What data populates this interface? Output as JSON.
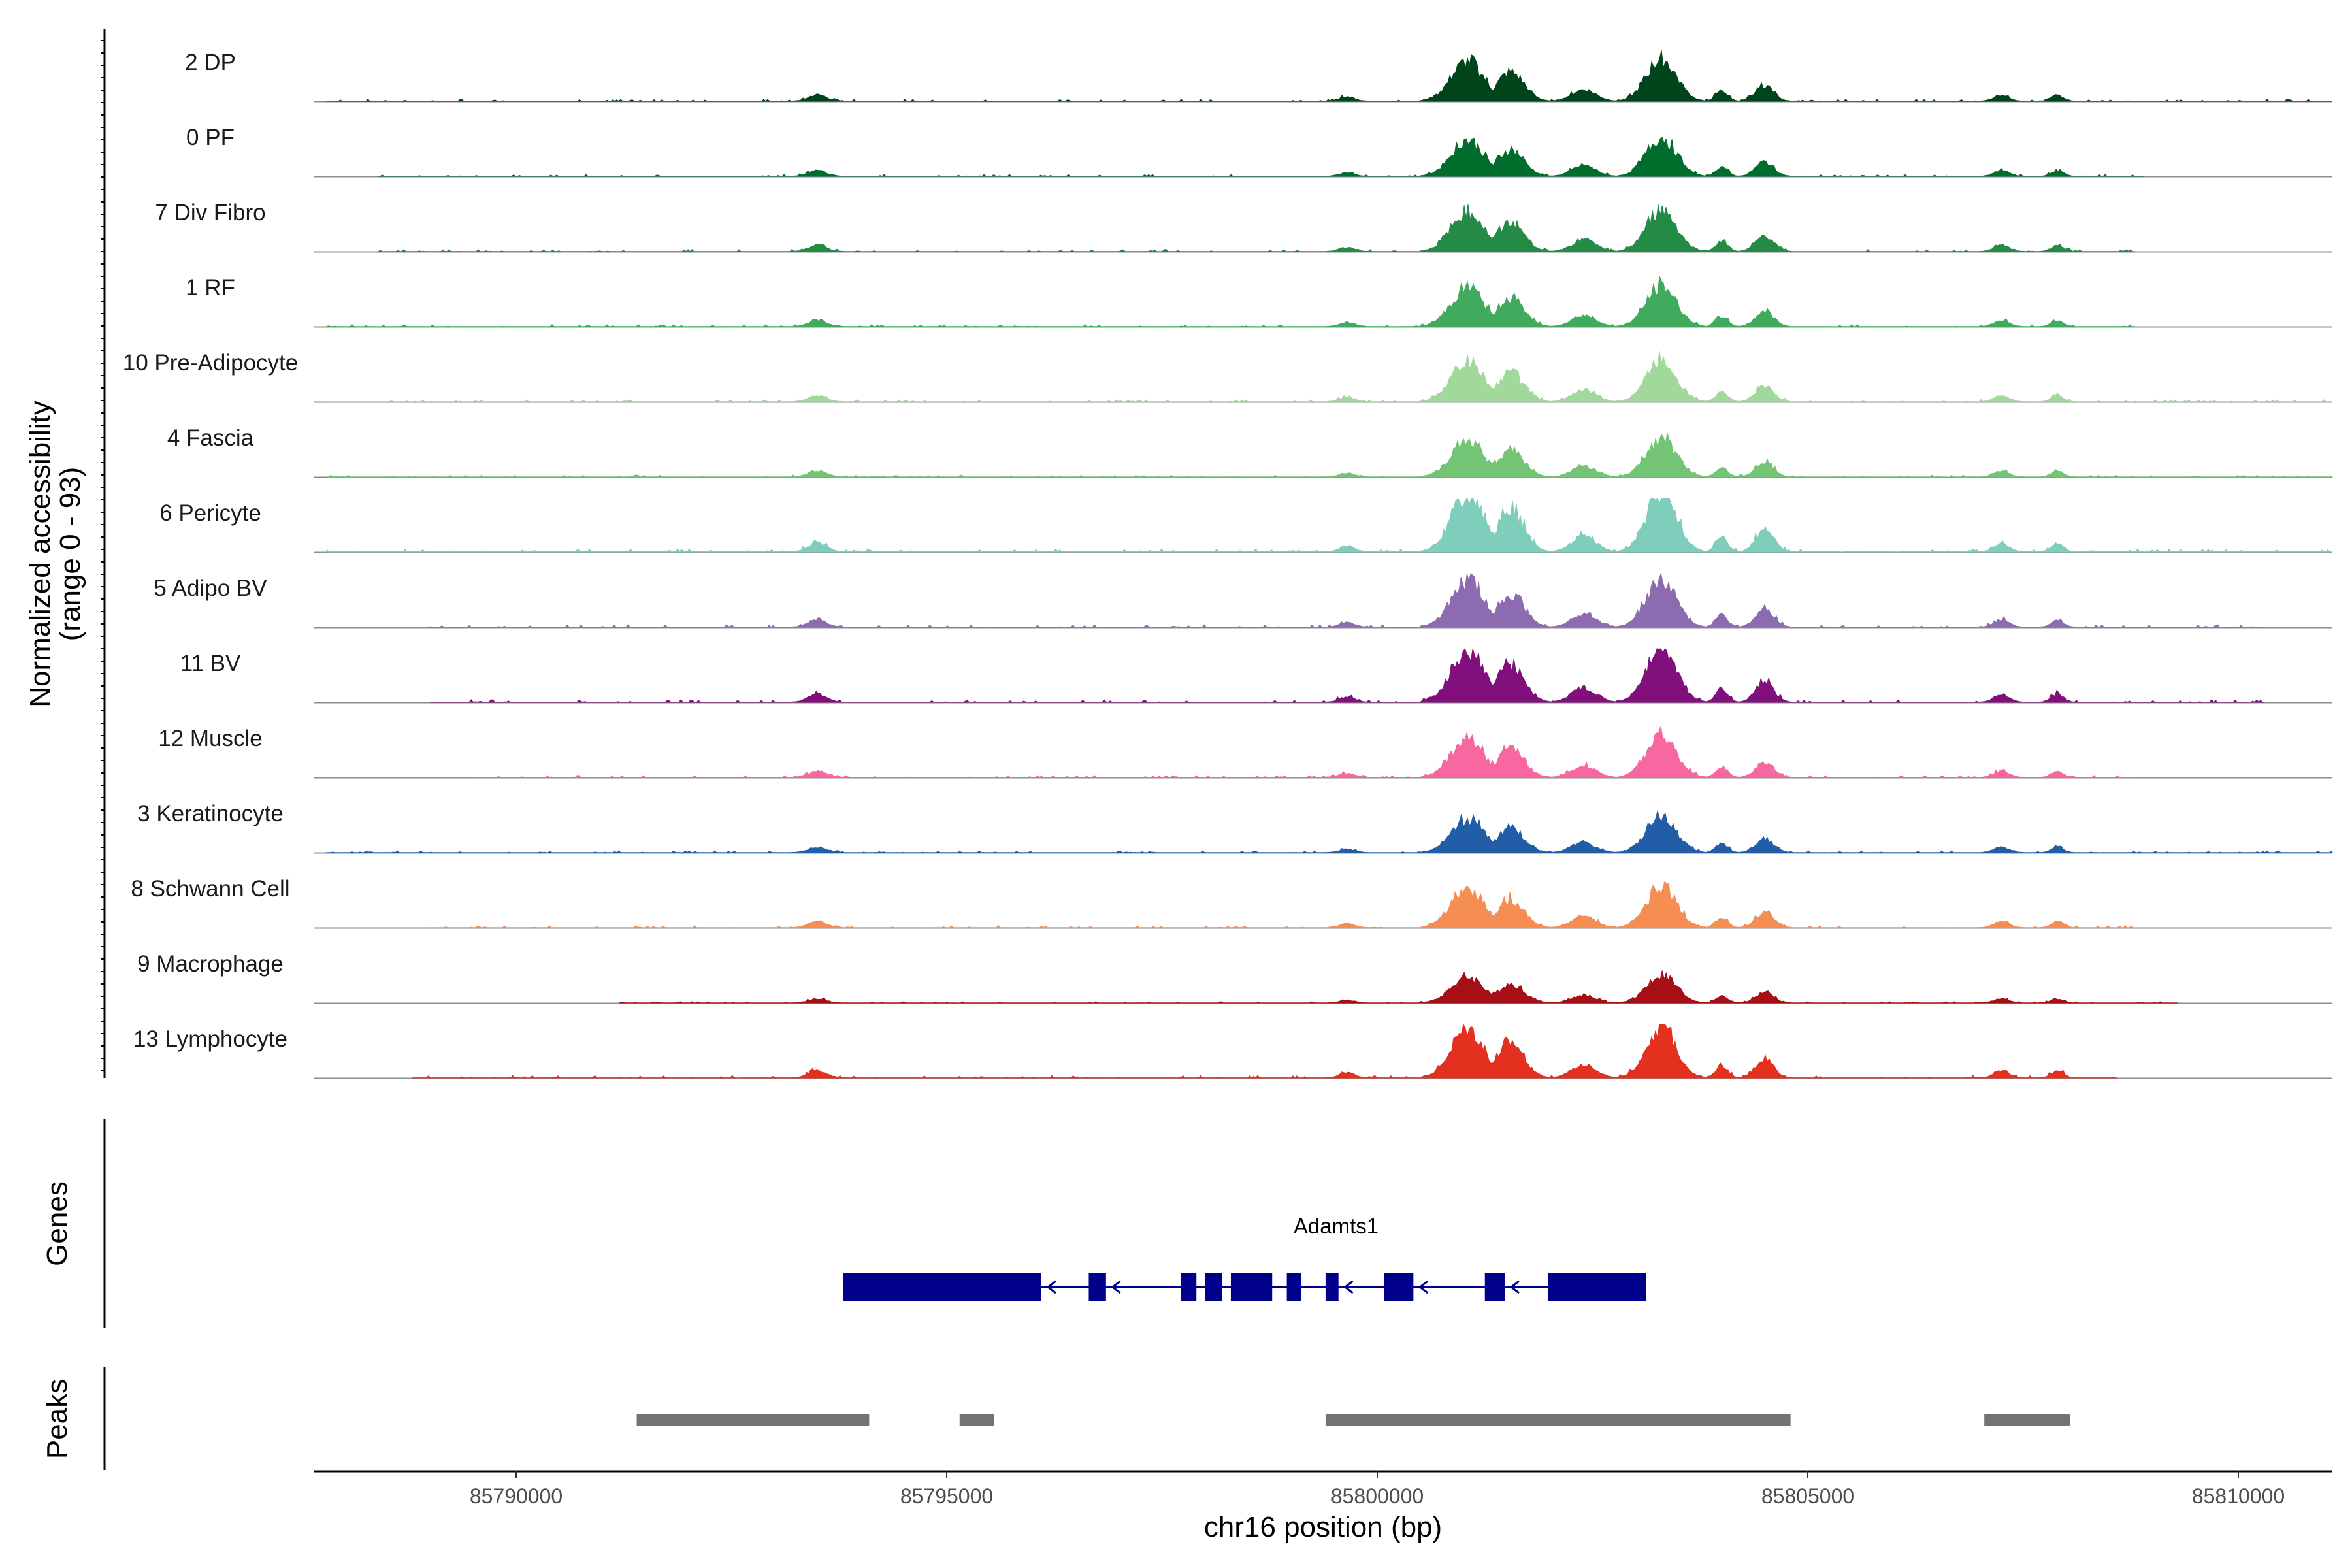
{
  "chart_data": {
    "type": "area",
    "title": "",
    "ylabel": "Normalized accessibility",
    "ylabel_range": "(range 0 - 93)",
    "y_range": [
      0,
      93
    ],
    "xlabel": "chr16 position (bp)",
    "x_range": [
      85787800,
      85811300
    ],
    "x_ticks": [
      85790000,
      85795000,
      85800000,
      85805000,
      85810000
    ],
    "x_tick_labels": [
      "85790000",
      "85795000",
      "85800000",
      "85805000",
      "85810000"
    ],
    "grid": false,
    "legend": "none",
    "tracks": [
      {
        "name": "2 DP",
        "color": "#00441b",
        "scale": 1.0,
        "extent": [
          85787800,
          85811300
        ]
      },
      {
        "name": "0 PF",
        "color": "#006d2c",
        "scale": 0.92,
        "extent": [
          85788400,
          85808900
        ]
      },
      {
        "name": "7 Div Fibro",
        "color": "#238b45",
        "scale": 1.0,
        "extent": [
          85788400,
          85808800
        ]
      },
      {
        "name": "1 RF",
        "color": "#41ab5d",
        "scale": 0.98,
        "extent": [
          85787800,
          85808800
        ]
      },
      {
        "name": "10 Pre-Adipocyte",
        "color": "#a1d99b",
        "scale": 1.0,
        "extent": [
          85787800,
          85811300
        ]
      },
      {
        "name": "4 Fascia",
        "color": "#74c476",
        "scale": 0.92,
        "extent": [
          85787800,
          85811300
        ]
      },
      {
        "name": "6 Pericyte",
        "color": "#7fcdbb",
        "scale": 1.45,
        "extent": [
          85787800,
          85811300
        ]
      },
      {
        "name": "5 Adipo BV",
        "color": "#8c6bb1",
        "scale": 1.15,
        "extent": [
          85789000,
          85810300
        ]
      },
      {
        "name": "11 BV",
        "color": "#810f7c",
        "scale": 1.3,
        "extent": [
          85789000,
          85810300
        ]
      },
      {
        "name": "12 Muscle",
        "color": "#f768a1",
        "scale": 1.0,
        "extent": [
          85789500,
          85808800
        ]
      },
      {
        "name": "3 Keratinocyte",
        "color": "#225ea8",
        "scale": 0.85,
        "extent": [
          85787800,
          85811300
        ]
      },
      {
        "name": "8 Schwann Cell",
        "color": "#f68d53",
        "scale": 1.0,
        "extent": [
          85789000,
          85808800
        ]
      },
      {
        "name": "9 Macrophage",
        "color": "#a50f15",
        "scale": 0.65,
        "extent": [
          85791200,
          85809300
        ]
      },
      {
        "name": "13 Lymphocyte",
        "color": "#e3301f",
        "scale": 1.2,
        "extent": [
          85788800,
          85808600
        ]
      }
    ],
    "peak_regions_bp": [
      [
        85800500,
        85801600,
        0.75
      ],
      [
        85801100,
        85802000,
        0.55
      ],
      [
        85802000,
        85802800,
        0.22
      ],
      [
        85802800,
        85803800,
        0.8
      ],
      [
        85803800,
        85804200,
        0.2
      ],
      [
        85804200,
        85804800,
        0.3
      ],
      [
        85793200,
        85793800,
        0.12
      ],
      [
        85807000,
        85807500,
        0.12
      ],
      [
        85807700,
        85808100,
        0.12
      ],
      [
        85799400,
        85799900,
        0.08
      ]
    ],
    "gene_track": {
      "label": "Genes",
      "gene_name": "Adamts1",
      "strand": "-",
      "color": "#00008b",
      "exons_bp": [
        [
          85793800,
          85796100
        ],
        [
          85796650,
          85796850
        ],
        [
          85797720,
          85797900
        ],
        [
          85798000,
          85798200
        ],
        [
          85798300,
          85798780
        ],
        [
          85798950,
          85799120
        ],
        [
          85799400,
          85799550
        ],
        [
          85800080,
          85800420
        ],
        [
          85801250,
          85801480
        ],
        [
          85801980,
          85803120
        ]
      ]
    },
    "peak_track": {
      "label": "Peaks",
      "color": "#737373",
      "regions_bp": [
        [
          85791400,
          85794100
        ],
        [
          85795150,
          85795550
        ],
        [
          85799400,
          85804800
        ],
        [
          85807050,
          85808050
        ]
      ]
    }
  }
}
